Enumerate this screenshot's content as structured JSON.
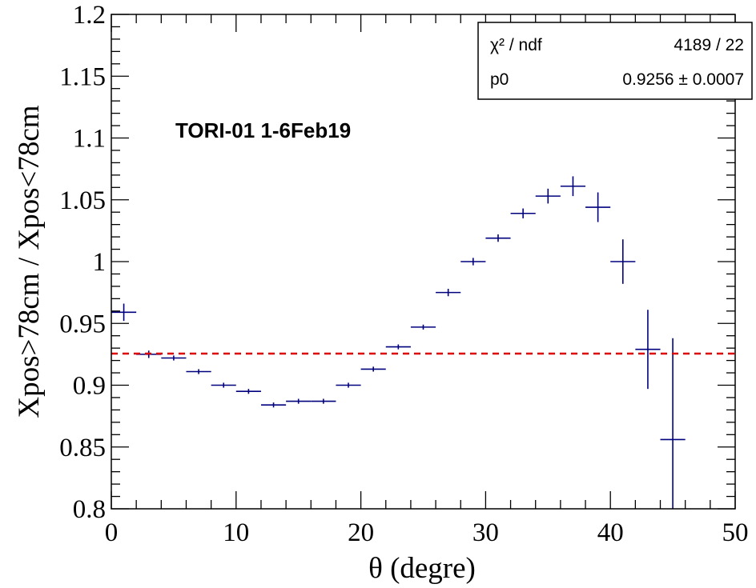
{
  "chart_data": {
    "type": "scatter",
    "title": "",
    "annotation": "TORI-01 1-6Feb19",
    "xlabel": "θ (degre)",
    "ylabel": "Xpos>78cm / Xpos<78cm",
    "xlim": [
      0,
      50
    ],
    "ylim": [
      0.8,
      1.2
    ],
    "x_ticks": [
      0,
      10,
      20,
      30,
      40,
      50
    ],
    "x_tick_labels": [
      "0",
      "10",
      "20",
      "30",
      "40",
      "50"
    ],
    "y_ticks": [
      0.8,
      0.85,
      0.9,
      0.95,
      1.0,
      1.05,
      1.1,
      1.15,
      1.2
    ],
    "y_tick_labels": [
      "0.8",
      "0.85",
      "0.9",
      "0.95",
      "1",
      "1.05",
      "1.1",
      "1.15",
      "1.2"
    ],
    "grid": false,
    "series": [
      {
        "color": "#00007f",
        "x": [
          1,
          3,
          5,
          7,
          9,
          11,
          13,
          15,
          17,
          19,
          21,
          23,
          25,
          27,
          29,
          31,
          33,
          35,
          37,
          39,
          41,
          43,
          45
        ],
        "xerr": [
          1,
          1,
          1,
          1,
          1,
          1,
          1,
          1,
          1,
          1,
          1,
          1,
          1,
          1,
          1,
          1,
          1,
          1,
          1,
          1,
          1,
          1,
          1
        ],
        "y": [
          0.959,
          0.925,
          0.922,
          0.911,
          0.9,
          0.895,
          0.884,
          0.887,
          0.887,
          0.9,
          0.913,
          0.931,
          0.947,
          0.975,
          1.0,
          1.019,
          1.039,
          1.053,
          1.061,
          1.044,
          1.0,
          0.929,
          0.856
        ],
        "yerr": [
          0.007,
          0.003,
          0.002,
          0.002,
          0.002,
          0.002,
          0.002,
          0.002,
          0.002,
          0.002,
          0.002,
          0.002,
          0.002,
          0.003,
          0.003,
          0.003,
          0.004,
          0.006,
          0.008,
          0.012,
          0.018,
          0.032,
          0.082
        ]
      }
    ],
    "fit": {
      "constant": 0.9256,
      "color": "#e00000",
      "style": "dashed"
    },
    "stats_box": {
      "placement": "top-right",
      "rows": [
        {
          "label": "χ² / ndf",
          "value": "4189 / 22"
        },
        {
          "label": "p0",
          "value": "0.9256 ± 0.0007"
        }
      ]
    }
  }
}
